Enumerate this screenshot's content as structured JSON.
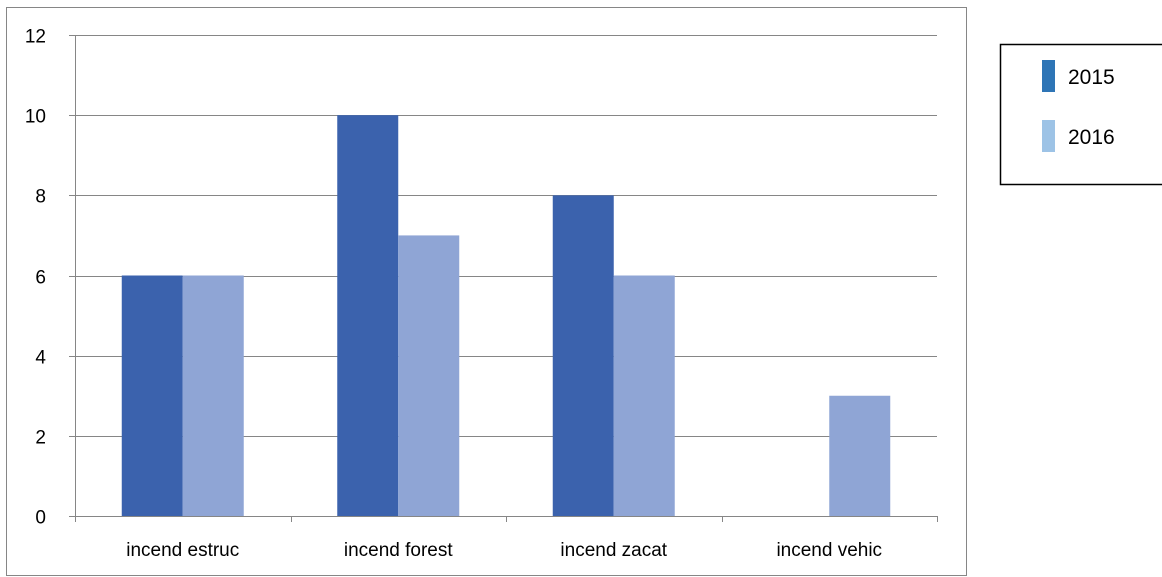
{
  "chart_data": {
    "type": "bar",
    "title": "",
    "xlabel": "",
    "ylabel": "",
    "categories": [
      "incend estruc",
      "incend forest",
      "incend zacat",
      "incend vehic"
    ],
    "series": [
      {
        "name": "2015",
        "values": [
          6,
          10,
          8,
          0
        ]
      },
      {
        "name": "2016",
        "values": [
          6,
          7,
          6,
          3
        ]
      }
    ],
    "ylim": [
      0,
      12
    ],
    "yticks": [
      0,
      2,
      4,
      6,
      8,
      10,
      12
    ],
    "grid": true,
    "legend_position": "top-right"
  },
  "colors": {
    "series_bar": [
      "#3b62ad",
      "#8fa5d5"
    ],
    "series_legend": [
      "#2e75b6",
      "#9dc3e6"
    ],
    "gridline": "#868686",
    "frame": "#868686"
  }
}
